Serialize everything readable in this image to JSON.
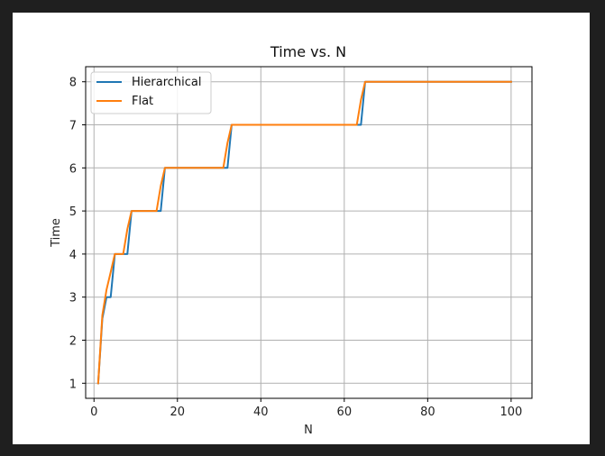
{
  "chart_data": {
    "type": "line",
    "title": "Time vs. N",
    "xlabel": "N",
    "ylabel": "Time",
    "xlim": [
      -2,
      105
    ],
    "ylim": [
      0.65,
      8.35
    ],
    "xticks": [
      0,
      20,
      40,
      60,
      80,
      100
    ],
    "yticks": [
      1,
      2,
      3,
      4,
      5,
      6,
      7,
      8
    ],
    "grid": true,
    "legend_position": "top-left",
    "series": [
      {
        "name": "Hierarchical",
        "color": "#1f77b4",
        "x": [
          1,
          2,
          3,
          4,
          5,
          6,
          7,
          8,
          9,
          15,
          16,
          17,
          31,
          32,
          33,
          63,
          64,
          65,
          100
        ],
        "y": [
          1,
          2.5,
          3,
          3,
          4,
          4,
          4,
          4,
          5,
          5,
          5,
          6,
          6,
          6,
          7,
          7,
          7,
          8,
          8
        ]
      },
      {
        "name": "Flat",
        "color": "#ff7f0e",
        "x": [
          1,
          2,
          3,
          4,
          5,
          6,
          7,
          8,
          9,
          15,
          16,
          17,
          31,
          32,
          33,
          63,
          64,
          65,
          100
        ],
        "y": [
          1,
          2.58,
          3.17,
          3.58,
          4,
          4,
          4,
          4.58,
          5,
          5,
          5.58,
          6,
          6,
          6.58,
          7,
          7,
          7.58,
          8,
          8
        ]
      }
    ]
  }
}
